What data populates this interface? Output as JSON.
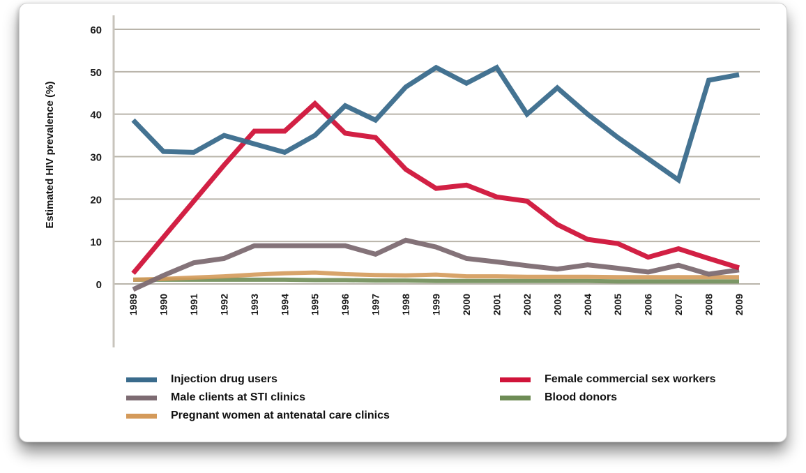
{
  "chart_data": {
    "type": "line",
    "title": "",
    "xlabel": "",
    "ylabel": "Estimated HIV prevalence (%)",
    "ylim": [
      0,
      60
    ],
    "yticks": [
      0,
      10,
      20,
      30,
      40,
      50,
      60
    ],
    "grid": true,
    "legend_position": "bottom",
    "x": [
      "1989",
      "1990",
      "1991",
      "1992",
      "1993",
      "1994",
      "1995",
      "1996",
      "1997",
      "1998",
      "1999",
      "2000",
      "2001",
      "2002",
      "2003",
      "2004",
      "2005",
      "2006",
      "2007",
      "2008",
      "2009"
    ],
    "series": [
      {
        "name": "Injection drug users",
        "color": "#3a6b8c",
        "values": [
          38.6,
          31.2,
          31,
          35,
          33,
          31,
          35,
          42,
          38.6,
          46.4,
          51,
          47.3,
          51,
          40,
          46.2,
          40,
          34.5,
          29.5,
          24.5,
          48,
          49.3
        ]
      },
      {
        "name": "Female commercial sex workers",
        "color": "#d0143a",
        "values": [
          2.5,
          11,
          19.5,
          28,
          36,
          36,
          42.5,
          35.5,
          34.5,
          27,
          22.5,
          23.3,
          20.5,
          19.5,
          14,
          10.5,
          9.5,
          6.3,
          8.3,
          6,
          3.8
        ]
      },
      {
        "name": "Male clients at STI clinics",
        "color": "#7d6b72",
        "values": [
          -1.3,
          2,
          5,
          6,
          9,
          9,
          9,
          9,
          7,
          10.3,
          8.7,
          6,
          5.2,
          4.3,
          3.5,
          4.5,
          3.7,
          2.8,
          4.4,
          2.3,
          3.3
        ]
      },
      {
        "name": "Blood donors",
        "color": "#6e8c55",
        "values": [
          1,
          1,
          1,
          1,
          1,
          1,
          0.9,
          0.9,
          0.8,
          0.8,
          0.7,
          0.7,
          0.7,
          0.7,
          0.7,
          0.7,
          0.6,
          0.6,
          0.6,
          0.6,
          0.6
        ]
      },
      {
        "name": "Pregnant women at antenatal care clinics",
        "color": "#d49a5a",
        "values": [
          1,
          1.2,
          1.5,
          1.8,
          2.2,
          2.5,
          2.7,
          2.3,
          2.1,
          2,
          2.2,
          1.8,
          1.8,
          1.7,
          1.7,
          1.7,
          1.6,
          1.6,
          1.6,
          1.6,
          1.6
        ]
      }
    ],
    "legend": [
      {
        "label": "Injection drug users",
        "color": "#3a6b8c"
      },
      {
        "label": "Female commercial sex workers",
        "color": "#d0143a"
      },
      {
        "label": "Male clients at STI clinics",
        "color": "#7d6b72"
      },
      {
        "label": "Blood donors",
        "color": "#6e8c55"
      },
      {
        "label": "Pregnant women at antenatal care clinics",
        "color": "#d49a5a"
      }
    ],
    "gridline_color": "#b9b4aa"
  }
}
